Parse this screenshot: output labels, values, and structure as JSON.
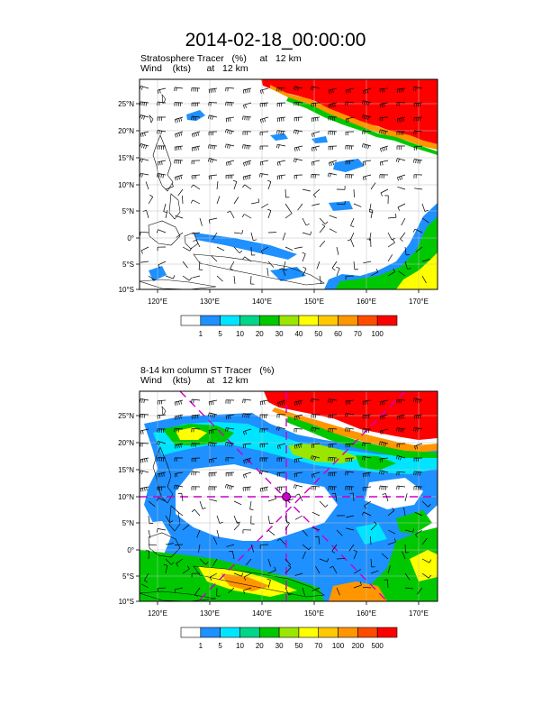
{
  "title": "2014-02-18_00:00:00",
  "panels": [
    {
      "line1": "Stratosphere Tracer   (%)     at   12 km",
      "line2": "Wind    (kts)      at   12 km",
      "lat_ticks": [
        "25°N",
        "20°N",
        "15°N",
        "10°N",
        "5°N",
        "0°",
        "5°S",
        "10°S"
      ],
      "lon_ticks": [
        "120°E",
        "130°E",
        "140°E",
        "150°E",
        "160°E",
        "170°E"
      ],
      "legend_labels": [
        "1",
        "5",
        "10",
        "20",
        "30",
        "40",
        "50",
        "60",
        "70",
        "100"
      ],
      "legend_colors": [
        "#ffffff",
        "#1e90ff",
        "#00e5ff",
        "#00d68a",
        "#00c800",
        "#9ae600",
        "#ffff00",
        "#ffc800",
        "#ff9600",
        "#ff4b00",
        "#ff0000"
      ]
    },
    {
      "line1": "8-14 km column ST Tracer   (%)",
      "line2": "Wind    (kts)      at   12 km",
      "lat_ticks": [
        "25°N",
        "20°N",
        "15°N",
        "10°N",
        "5°N",
        "0°",
        "5°S",
        "10°S"
      ],
      "lon_ticks": [
        "120°E",
        "130°E",
        "140°E",
        "150°E",
        "160°E",
        "170°E"
      ],
      "legend_labels": [
        "1",
        "5",
        "10",
        "20",
        "30",
        "50",
        "70",
        "100",
        "200",
        "500"
      ],
      "legend_colors": [
        "#ffffff",
        "#1e90ff",
        "#00e5ff",
        "#00d68a",
        "#00c800",
        "#9ae600",
        "#ffff00",
        "#ffc800",
        "#ff9600",
        "#ff4b00",
        "#ff0000"
      ]
    }
  ],
  "map": {
    "lon_range": [
      116,
      173
    ],
    "lat_range": [
      -10,
      29
    ],
    "marker": {
      "lon": 145,
      "lat": 10,
      "color": "#cc00cc"
    }
  }
}
